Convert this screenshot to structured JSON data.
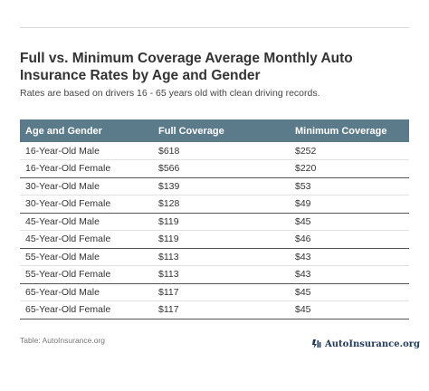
{
  "header": {
    "title": "Full vs. Minimum Coverage Average Monthly Auto Insurance Rates by Age and Gender",
    "subtitle": "Rates are based on drivers 16 - 65 years old with clean driving records."
  },
  "table": {
    "columns": [
      "Age and Gender",
      "Full Coverage",
      "Minimum Coverage"
    ],
    "rows": [
      [
        "16-Year-Old Male",
        "$618",
        "$252"
      ],
      [
        "16-Year-Old Female",
        "$566",
        "$220"
      ],
      [
        "30-Year-Old Male",
        "$139",
        "$53"
      ],
      [
        "30-Year-Old Female",
        "$128",
        "$49"
      ],
      [
        "45-Year-Old Male",
        "$119",
        "$45"
      ],
      [
        "45-Year-Old Female",
        "$119",
        "$46"
      ],
      [
        "55-Year-Old Male",
        "$113",
        "$43"
      ],
      [
        "55-Year-Old Female",
        "$113",
        "$43"
      ],
      [
        "65-Year-Old Male",
        "$117",
        "$45"
      ],
      [
        "65-Year-Old Female",
        "$117",
        "$45"
      ]
    ]
  },
  "footer": {
    "source": "Table: AutoInsurance.org",
    "brand": "AutoInsurance.org",
    "brand_icon": "autoinsurance-logo-icon"
  },
  "colors": {
    "header_bg": "#5c7b8a",
    "brand": "#1f3b5a"
  }
}
